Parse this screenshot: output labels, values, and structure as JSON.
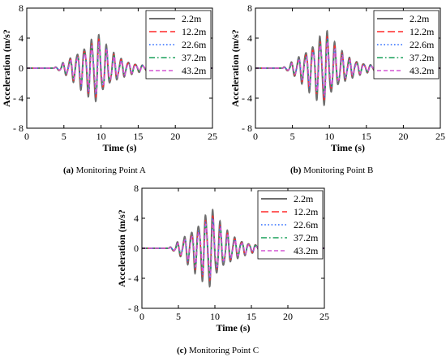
{
  "panels": [
    {
      "caption_letter": "(a)",
      "caption_text": "Monitoring Point A",
      "caption_pos": [
        78,
        204
      ]
    },
    {
      "caption_letter": "(b)",
      "caption_text": "Monitoring Point B",
      "caption_pos": [
        358,
        204
      ]
    },
    {
      "caption_letter": "(c)",
      "caption_text": "Monitoring Point C",
      "caption_pos": [
        218,
        426
      ]
    }
  ],
  "chart_data": [
    {
      "type": "line",
      "title": "",
      "xlabel": "Time (s)",
      "ylabel": "Acceleration (m/s?",
      "xlim": [
        0,
        25
      ],
      "ylim": [
        -8,
        8
      ],
      "xticks": [
        0,
        5,
        10,
        15,
        20,
        25
      ],
      "yticks": [
        -8,
        -4,
        0,
        4,
        8
      ],
      "ytick_labels": [
        "- 8",
        "- 4",
        "0",
        "4",
        "8"
      ],
      "grid": false,
      "legend_position": "top-right",
      "peak_time": 9.4,
      "series": [
        {
          "name": "2.2m",
          "color": "#6e6e6e",
          "dash": "solid",
          "amplitude": 5.2
        },
        {
          "name": "12.2m",
          "color": "#ff2a2a",
          "dash": "long-dash",
          "amplitude": 4.5
        },
        {
          "name": "22.6m",
          "color": "#2c6cff",
          "dash": "dot",
          "amplitude": 4.2
        },
        {
          "name": "37.2m",
          "color": "#1aa05a",
          "dash": "dash-dot",
          "amplitude": 4.1
        },
        {
          "name": "43.2m",
          "color": "#d455d4",
          "dash": "dash",
          "amplitude": 4.0
        }
      ]
    },
    {
      "type": "line",
      "title": "",
      "xlabel": "Time (s)",
      "ylabel": "Acceleration (m/s?",
      "xlim": [
        0,
        25
      ],
      "ylim": [
        -8,
        8
      ],
      "xticks": [
        0,
        5,
        10,
        15,
        20,
        25
      ],
      "yticks": [
        -8,
        -4,
        0,
        4,
        8
      ],
      "ytick_labels": [
        "- 8",
        "- 4",
        "0",
        "4",
        "8"
      ],
      "grid": false,
      "legend_position": "top-right",
      "peak_time": 9.4,
      "series": [
        {
          "name": "2.2m",
          "color": "#6e6e6e",
          "dash": "solid",
          "amplitude": 5.8
        },
        {
          "name": "12.2m",
          "color": "#ff2a2a",
          "dash": "long-dash",
          "amplitude": 4.9
        },
        {
          "name": "22.6m",
          "color": "#2c6cff",
          "dash": "dot",
          "amplitude": 4.5
        },
        {
          "name": "37.2m",
          "color": "#1aa05a",
          "dash": "dash-dot",
          "amplitude": 4.3
        },
        {
          "name": "43.2m",
          "color": "#d455d4",
          "dash": "dash",
          "amplitude": 4.2
        }
      ]
    },
    {
      "type": "line",
      "title": "",
      "xlabel": "Time (s)",
      "ylabel": "Acceleration (m/s?",
      "xlim": [
        0,
        25
      ],
      "ylim": [
        -8,
        8
      ],
      "xticks": [
        0,
        5,
        10,
        15,
        20,
        25
      ],
      "yticks": [
        -8,
        -4,
        0,
        4,
        8
      ],
      "ytick_labels": [
        "- 8",
        "- 4",
        "0",
        "4",
        "8"
      ],
      "grid": false,
      "legend_position": "top-right",
      "peak_time": 9.4,
      "series": [
        {
          "name": "2.2m",
          "color": "#6e6e6e",
          "dash": "solid",
          "amplitude": 6.0
        },
        {
          "name": "12.2m",
          "color": "#ff2a2a",
          "dash": "long-dash",
          "amplitude": 5.0
        },
        {
          "name": "22.6m",
          "color": "#2c6cff",
          "dash": "dot",
          "amplitude": 4.7
        },
        {
          "name": "37.2m",
          "color": "#1aa05a",
          "dash": "dash-dot",
          "amplitude": 4.5
        },
        {
          "name": "43.2m",
          "color": "#d455d4",
          "dash": "dash",
          "amplitude": 4.4
        }
      ]
    }
  ]
}
